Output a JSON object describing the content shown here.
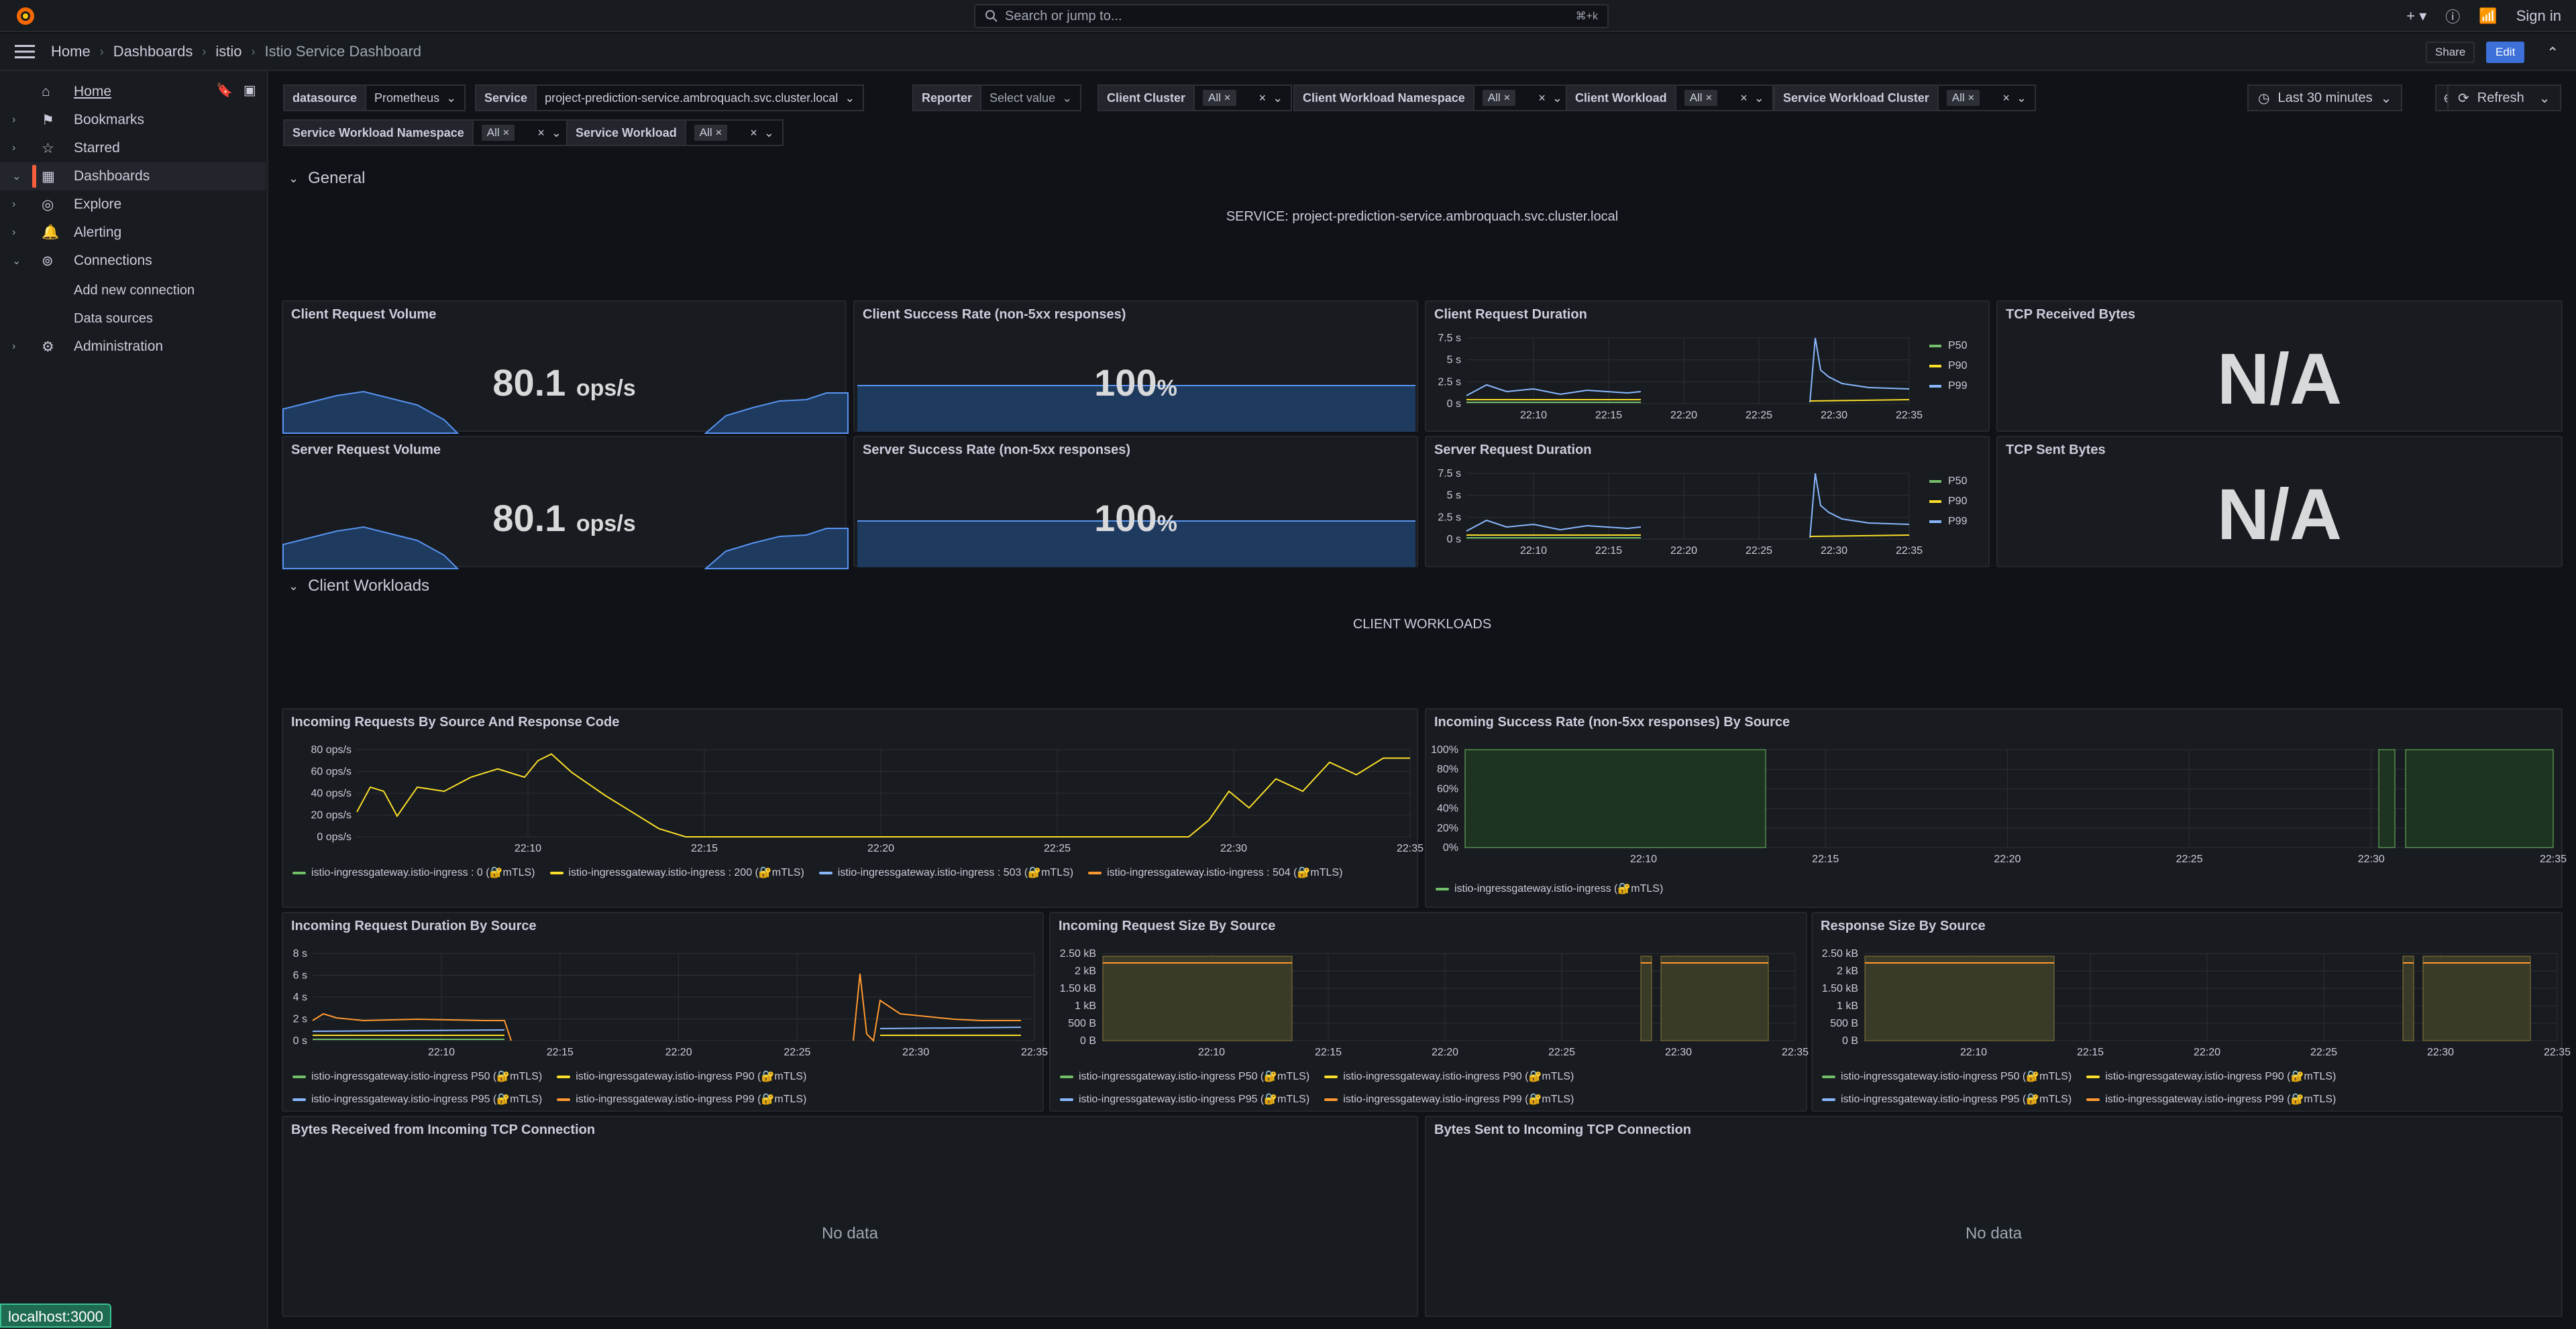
{
  "topbar": {
    "search_placeholder": "Search or jump to...",
    "search_shortcut": "⌘+k",
    "sign_in": "Sign in"
  },
  "breadcrumbs": [
    "Home",
    "Dashboards",
    "istio",
    "Istio Service Dashboard"
  ],
  "actions": {
    "share": "Share",
    "edit": "Edit"
  },
  "sidebar": {
    "home": "Home",
    "items": [
      "Bookmarks",
      "Starred",
      "Dashboards",
      "Explore",
      "Alerting",
      "Connections"
    ],
    "sub_items": [
      "Add new connection",
      "Data sources"
    ],
    "administration": "Administration"
  },
  "variables": [
    {
      "label": "datasource",
      "value": "Prometheus"
    },
    {
      "label": "Service",
      "value": "project-prediction-service.ambroquach.svc.cluster.local"
    },
    {
      "label": "Reporter",
      "value": "Select value"
    },
    {
      "label": "Client Cluster",
      "value": "All"
    },
    {
      "label": "Client Workload Namespace",
      "value": "All"
    },
    {
      "label": "Client Workload",
      "value": "All"
    },
    {
      "label": "Service Workload Cluster",
      "value": "All"
    },
    {
      "label": "Service Workload Namespace",
      "value": "All"
    },
    {
      "label": "Service Workload",
      "value": "All"
    }
  ],
  "time": {
    "range": "Last 30 minutes",
    "refresh": "Refresh"
  },
  "rows": {
    "general": "General",
    "client_workloads": "Client Workloads"
  },
  "text_panels": {
    "service": "SERVICE: project-prediction-service.ambroquach.svc.cluster.local",
    "client_workloads": "CLIENT WORKLOADS"
  },
  "panels": {
    "client_request_volume": {
      "title": "Client Request Volume",
      "value": "80.1",
      "unit": "ops/s"
    },
    "client_success_rate": {
      "title": "Client Success Rate (non-5xx responses)",
      "value": "100",
      "unit": "%"
    },
    "client_request_duration": {
      "title": "Client Request Duration"
    },
    "tcp_received": {
      "title": "TCP Received Bytes",
      "value": "N/A"
    },
    "server_request_volume": {
      "title": "Server Request Volume",
      "value": "80.1",
      "unit": "ops/s"
    },
    "server_success_rate": {
      "title": "Server Success Rate (non-5xx responses)",
      "value": "100",
      "unit": "%"
    },
    "server_request_duration": {
      "title": "Server Request Duration"
    },
    "tcp_sent": {
      "title": "TCP Sent Bytes",
      "value": "N/A"
    },
    "incoming_requests": {
      "title": "Incoming Requests By Source And Response Code"
    },
    "incoming_success": {
      "title": "Incoming Success Rate (non-5xx responses) By Source"
    },
    "incoming_duration": {
      "title": "Incoming Request Duration By Source"
    },
    "incoming_size": {
      "title": "Incoming Request Size By Source"
    },
    "response_size": {
      "title": "Response Size By Source"
    },
    "bytes_received_tcp": {
      "title": "Bytes Received from Incoming TCP Connection",
      "nodata": "No data"
    },
    "bytes_sent_tcp": {
      "title": "Bytes Sent to Incoming TCP Connection",
      "nodata": "No data"
    }
  },
  "chart_data": [
    {
      "type": "line",
      "name_ref": "client_request_duration",
      "y_ticks": [
        "7.5 s",
        "5 s",
        "2.5 s",
        "0 s"
      ],
      "x_ticks": [
        "22:10",
        "22:15",
        "22:20",
        "22:25",
        "22:30",
        "22:35"
      ],
      "legend": [
        "P50",
        "P90",
        "P99"
      ]
    },
    {
      "type": "line",
      "name_ref": "server_request_duration",
      "y_ticks": [
        "7.5 s",
        "5 s",
        "2.5 s",
        "0 s"
      ],
      "x_ticks": [
        "22:10",
        "22:15",
        "22:20",
        "22:25",
        "22:30",
        "22:35"
      ],
      "legend": [
        "P50",
        "P90",
        "P99"
      ]
    },
    {
      "type": "line",
      "name_ref": "incoming_requests",
      "y_ticks": [
        "80 ops/s",
        "60 ops/s",
        "40 ops/s",
        "20 ops/s",
        "0 ops/s"
      ],
      "x_ticks": [
        "22:10",
        "22:15",
        "22:20",
        "22:25",
        "22:30",
        "22:35"
      ],
      "legend": [
        "istio-ingressgateway.istio-ingress : 0 (🔐mTLS)",
        "istio-ingressgateway.istio-ingress : 200 (🔐mTLS)",
        "istio-ingressgateway.istio-ingress : 503 (🔐mTLS)",
        "istio-ingressgateway.istio-ingress : 504 (🔐mTLS)"
      ]
    },
    {
      "type": "area",
      "name_ref": "incoming_success",
      "y_ticks": [
        "100%",
        "80%",
        "60%",
        "40%",
        "20%",
        "0%"
      ],
      "x_ticks": [
        "22:10",
        "22:15",
        "22:20",
        "22:25",
        "22:30",
        "22:35"
      ],
      "legend": [
        "istio-ingressgateway.istio-ingress (🔐mTLS)"
      ]
    },
    {
      "type": "line",
      "name_ref": "incoming_duration",
      "y_ticks": [
        "8 s",
        "6 s",
        "4 s",
        "2 s",
        "0 s"
      ],
      "x_ticks": [
        "22:10",
        "22:15",
        "22:20",
        "22:25",
        "22:30",
        "22:35"
      ],
      "legend": [
        "istio-ingressgateway.istio-ingress P50 (🔐mTLS)",
        "istio-ingressgateway.istio-ingress P90 (🔐mTLS)",
        "istio-ingressgateway.istio-ingress P95 (🔐mTLS)",
        "istio-ingressgateway.istio-ingress P99 (🔐mTLS)"
      ]
    },
    {
      "type": "area",
      "name_ref": "incoming_size",
      "y_ticks": [
        "2.50 kB",
        "2 kB",
        "1.50 kB",
        "1 kB",
        "500 B",
        "0 B"
      ],
      "x_ticks": [
        "22:10",
        "22:15",
        "22:20",
        "22:25",
        "22:30",
        "22:35"
      ],
      "legend": [
        "istio-ingressgateway.istio-ingress P50 (🔐mTLS)",
        "istio-ingressgateway.istio-ingress P90 (🔐mTLS)",
        "istio-ingressgateway.istio-ingress P95 (🔐mTLS)",
        "istio-ingressgateway.istio-ingress P99 (🔐mTLS)"
      ]
    },
    {
      "type": "area",
      "name_ref": "response_size",
      "y_ticks": [
        "2.50 kB",
        "2 kB",
        "1.50 kB",
        "1 kB",
        "500 B",
        "0 B"
      ],
      "x_ticks": [
        "22:10",
        "22:15",
        "22:20",
        "22:25",
        "22:30",
        "22:35"
      ],
      "legend": [
        "istio-ingressgateway.istio-ingress P50 (🔐mTLS)",
        "istio-ingressgateway.istio-ingress P90 (🔐mTLS)",
        "istio-ingressgateway.istio-ingress P95 (🔐mTLS)",
        "istio-ingressgateway.istio-ingress P99 (🔐mTLS)"
      ]
    }
  ],
  "colors": {
    "green": "#73bf69",
    "yellow": "#fade2a",
    "blue": "#8ab8ff",
    "orange": "#ff9830",
    "accent": "#f55f3e"
  },
  "status": "localhost:3000"
}
